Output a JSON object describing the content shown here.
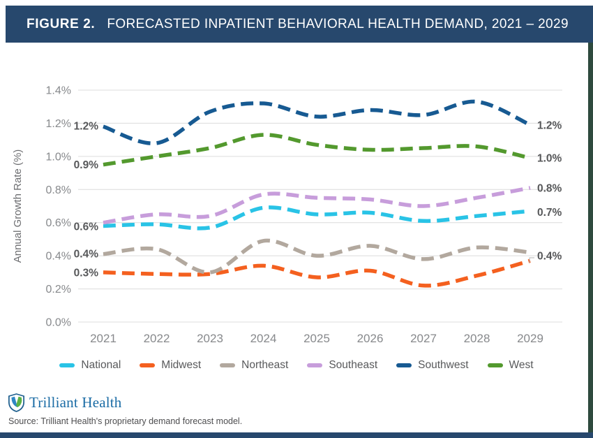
{
  "header": {
    "figure_label": "FIGURE 2.",
    "title": "FORECASTED INPATIENT BEHAVIORAL HEALTH DEMAND, 2021 – 2029"
  },
  "colors": {
    "header_bg": "#27486d",
    "bottom_border": "#27486d",
    "right_border": "#2e4a3e",
    "gridline": "#dcdcdc",
    "tick_text": "#87898c",
    "axis_title_text": "#6d6e71",
    "data_label_text": "#57585a",
    "leader_line": "#b5b5b5",
    "logo_blue": "#1b6ca5"
  },
  "chart_data": {
    "type": "line",
    "line_style": "dashed",
    "grid": "horizontal",
    "legend_position": "bottom",
    "ylabel": "Annual Growth Rate (%)",
    "ylim": [
      0,
      1.4
    ],
    "y_ticks": [
      "1.4%",
      "1.2%",
      "1.0%",
      "0.8%",
      "0.6%",
      "0.4%",
      "0.2%",
      "0.0%"
    ],
    "y_tick_values": [
      1.4,
      1.2,
      1.0,
      0.8,
      0.6,
      0.4,
      0.2,
      0.0
    ],
    "x_ticks": [
      "2021",
      "2022",
      "2023",
      "2024",
      "2025",
      "2026",
      "2027",
      "2028",
      "2029"
    ],
    "series": [
      {
        "name": "National",
        "color": "#29c3e6",
        "values": [
          0.58,
          0.59,
          0.57,
          0.69,
          0.65,
          0.66,
          0.61,
          0.64,
          0.67
        ]
      },
      {
        "name": "Midwest",
        "color": "#f4601f",
        "values": [
          0.3,
          0.29,
          0.29,
          0.34,
          0.27,
          0.31,
          0.22,
          0.28,
          0.37
        ]
      },
      {
        "name": "Northeast",
        "color": "#b2a89e",
        "values": [
          0.41,
          0.44,
          0.3,
          0.49,
          0.4,
          0.46,
          0.38,
          0.45,
          0.42
        ]
      },
      {
        "name": "Southeast",
        "color": "#c79ddb",
        "values": [
          0.6,
          0.65,
          0.64,
          0.77,
          0.75,
          0.74,
          0.7,
          0.75,
          0.81
        ]
      },
      {
        "name": "Southwest",
        "color": "#175a92",
        "values": [
          1.18,
          1.08,
          1.27,
          1.32,
          1.24,
          1.28,
          1.25,
          1.33,
          1.19
        ]
      },
      {
        "name": "West",
        "color": "#53992e",
        "values": [
          0.95,
          1.0,
          1.05,
          1.13,
          1.07,
          1.04,
          1.05,
          1.06,
          0.99
        ]
      }
    ],
    "edge_labels": {
      "left": [
        {
          "text": "1.2%",
          "value": 1.185
        },
        {
          "text": "0.9%",
          "value": 0.95
        },
        {
          "text": "0.6%",
          "value": 0.578
        },
        {
          "text": "0.4%",
          "value": 0.413
        },
        {
          "text": "0.3%",
          "value": 0.3
        }
      ],
      "right": [
        {
          "text": "1.2%",
          "value": 1.19
        },
        {
          "text": "1.0%",
          "value": 0.99
        },
        {
          "text": "0.8%",
          "value": 0.81
        },
        {
          "text": "0.7%",
          "value": 0.665
        },
        {
          "text": "0.4%",
          "value": 0.4,
          "leader": true
        }
      ]
    }
  },
  "footer": {
    "logo_text": "Trilliant Health",
    "source": "Source: Trilliant Health's proprietary demand forecast model."
  }
}
